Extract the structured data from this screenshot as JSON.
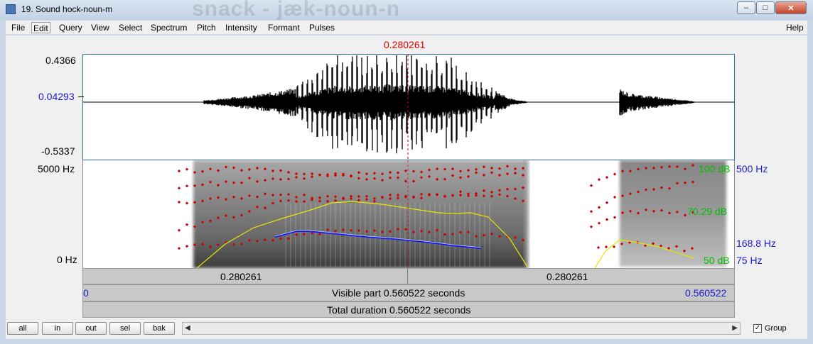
{
  "window": {
    "title": "19. Sound hock-noun-m",
    "background_text": "snack - jæk-noun-n",
    "buttons": {
      "minimize": "–",
      "maximize": "□",
      "close": "✕"
    }
  },
  "menu": {
    "items": [
      "File",
      "Edit",
      "Query",
      "View",
      "Select",
      "Spectrum",
      "Pitch",
      "Intensity",
      "Formant",
      "Pulses"
    ],
    "help": "Help"
  },
  "cursor": {
    "time": "0.280261"
  },
  "waveform": {
    "max": "0.4366",
    "mid": "0.04293",
    "min": "-0.5337"
  },
  "spectrogram": {
    "freq_top": "5000 Hz",
    "freq_bottom": "0 Hz",
    "intensity_top": "100 dB",
    "intensity_mid": "70.29 dB",
    "intensity_bottom": "50 dB",
    "pitch_top": "500 Hz",
    "pitch_value": "168.8 Hz",
    "pitch_bottom": "75 Hz"
  },
  "time_bars": {
    "left_segment": "0.280261",
    "right_segment": "0.280261",
    "visible_start": "0",
    "visible_label": "Visible part 0.560522 seconds",
    "visible_end": "0.560522",
    "total_label": "Total duration 0.560522 seconds"
  },
  "bottom": {
    "buttons": [
      "all",
      "in",
      "out",
      "sel",
      "bak"
    ],
    "group_label": "Group",
    "group_checked": true
  },
  "colors": {
    "cursor": "#ff0000",
    "formant": "#cc0000",
    "pitch": "#0000ff",
    "intensity": "#e6e600",
    "intensity_labels": "#00c000",
    "pitch_labels": "#0000cc"
  }
}
